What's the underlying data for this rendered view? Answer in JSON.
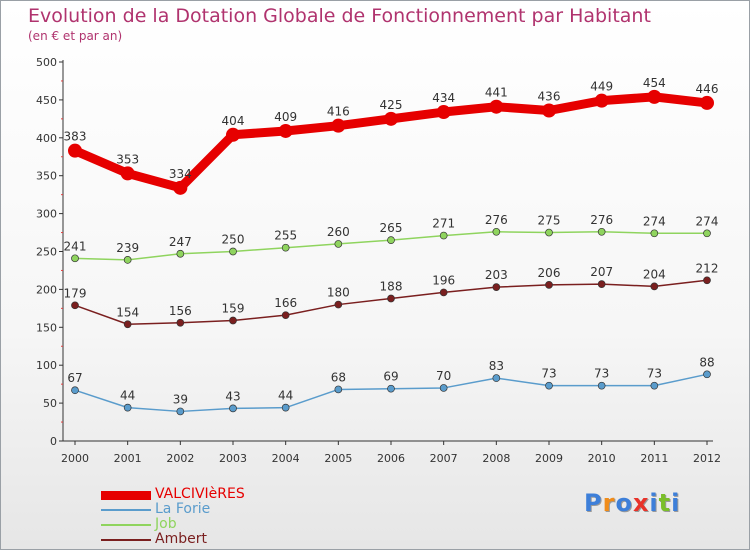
{
  "title": "Evolution de la Dotation Globale de Fonctionnement par Habitant",
  "subtitle": "(en € et par an)",
  "logo_text": "Proxiti",
  "chart_data": {
    "type": "line",
    "x": [
      "2000",
      "2001",
      "2002",
      "2003",
      "2004",
      "2005",
      "2006",
      "2007",
      "2008",
      "2009",
      "2010",
      "2011",
      "2012"
    ],
    "ylim": [
      0,
      500
    ],
    "yticks": [
      0,
      50,
      100,
      150,
      200,
      250,
      300,
      350,
      400,
      450,
      500
    ],
    "grid": false,
    "legend_position": "bottom-left",
    "series": [
      {
        "name": "VALCIVIèRES",
        "color": "#e60000",
        "values": [
          383,
          353,
          334,
          404,
          409,
          416,
          425,
          434,
          441,
          436,
          449,
          454,
          446
        ]
      },
      {
        "name": "La Forie",
        "color": "#5a9ccc",
        "values": [
          67,
          44,
          39,
          43,
          44,
          68,
          69,
          70,
          83,
          73,
          73,
          73,
          88
        ]
      },
      {
        "name": "Job",
        "color": "#8fd45e",
        "values": [
          241,
          239,
          247,
          250,
          255,
          260,
          265,
          271,
          276,
          275,
          276,
          274,
          274
        ]
      },
      {
        "name": "Ambert",
        "color": "#7a1f1f",
        "values": [
          179,
          154,
          156,
          159,
          166,
          180,
          188,
          196,
          203,
          206,
          207,
          204,
          212
        ]
      }
    ]
  }
}
